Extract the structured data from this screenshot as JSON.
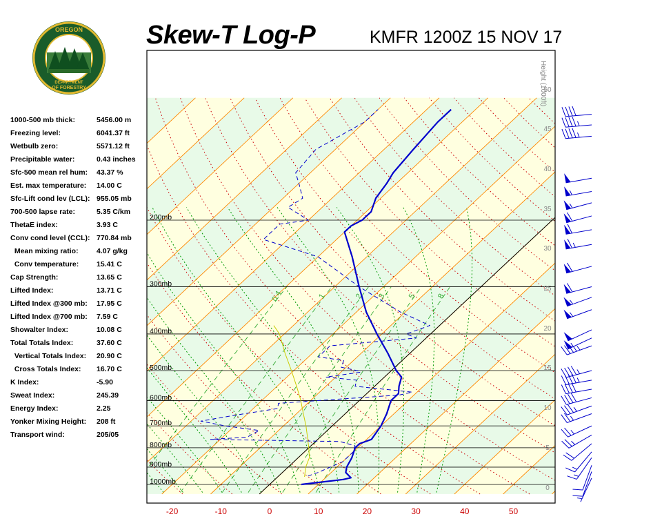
{
  "header": {
    "title": "Skew-T Log-P",
    "station": "KMFR 1200Z 15 NOV 17",
    "logo_text": "OREGON DEPARTMENT OF FORESTRY"
  },
  "stats": [
    {
      "label": "1000-500 mb thick:",
      "value": "5456.00 m"
    },
    {
      "label": "Freezing level:",
      "value": "6041.37 ft"
    },
    {
      "label": "Wetbulb zero:",
      "value": "5571.12 ft"
    },
    {
      "label": "Precipitable water:",
      "value": "0.43 inches"
    },
    {
      "label": "Sfc-500 mean rel hum:",
      "value": "43.37 %"
    },
    {
      "label": "Est. max temperature:",
      "value": "14.00 C"
    },
    {
      "label": "Sfc-Lift cond lev (LCL):",
      "value": "955.05 mb"
    },
    {
      "label": "700-500 lapse rate:",
      "value": "5.35 C/km"
    },
    {
      "label": "ThetaE index:",
      "value": "3.93 C"
    },
    {
      "label": "Conv cond level (CCL):",
      "value": "770.84 mb"
    },
    {
      "label": "  Mean mixing ratio:",
      "value": "4.07 g/kg"
    },
    {
      "label": "  Conv temperature:",
      "value": "15.41 C"
    },
    {
      "label": "Cap Strength:",
      "value": "13.65 C"
    },
    {
      "label": "Lifted Index:",
      "value": "13.71 C"
    },
    {
      "label": "Lifted Index @300 mb:",
      "value": "17.95 C"
    },
    {
      "label": "Lifted Index @700 mb:",
      "value": "7.59 C"
    },
    {
      "label": "Showalter Index:",
      "value": "10.08 C"
    },
    {
      "label": "Total Totals Index:",
      "value": "37.60 C"
    },
    {
      "label": "  Vertical Totals Index:",
      "value": "20.90 C"
    },
    {
      "label": "  Cross Totals Index:",
      "value": "16.70 C"
    },
    {
      "label": "K Index:",
      "value": "-5.90"
    },
    {
      "label": "Sweat Index:",
      "value": "245.39"
    },
    {
      "label": "Energy Index:",
      "value": "2.25"
    },
    {
      "label": "Yonker Mixing Height:",
      "value": "208 ft"
    },
    {
      "label": "Transport wind:",
      "value": "205/05"
    }
  ],
  "chart_data": {
    "type": "line",
    "title": "Skew-T Log-P",
    "x_axis": {
      "label": "",
      "unit": "C",
      "ticks": [
        -20,
        -10,
        0,
        10,
        20,
        30,
        40,
        50
      ],
      "range": [
        -27,
        58
      ]
    },
    "y_axis": {
      "label": "",
      "scale": "log-pressure",
      "unit": "mb",
      "range": [
        1050,
        100
      ],
      "ticks": [
        {
          "p": 1000,
          "label": "1000mb"
        },
        {
          "p": 900,
          "label": "900mb"
        },
        {
          "p": 800,
          "label": "800mb"
        },
        {
          "p": 700,
          "label": "700mb"
        },
        {
          "p": 600,
          "label": "600mb"
        },
        {
          "p": 500,
          "label": "500mb"
        },
        {
          "p": 400,
          "label": "400mb"
        },
        {
          "p": 300,
          "label": "300mb"
        },
        {
          "p": 200,
          "label": "200mb"
        }
      ]
    },
    "height_axis": {
      "label": "Height (1000ft)",
      "ticks": [
        0,
        5,
        10,
        15,
        20,
        25,
        30,
        35,
        40,
        45,
        50
      ]
    },
    "mixing_ratio_labels": [
      "0.4",
      "1",
      "2",
      "3",
      "5",
      "8"
    ],
    "series": [
      {
        "key": "temperature",
        "color": "#0000cc",
        "style": "solid",
        "points": [
          [
            1000,
            6.5
          ],
          [
            970,
            14
          ],
          [
            960,
            15.2
          ],
          [
            930,
            13
          ],
          [
            900,
            12
          ],
          [
            850,
            11
          ],
          [
            800,
            9.5
          ],
          [
            780,
            9.5
          ],
          [
            760,
            11
          ],
          [
            700,
            10
          ],
          [
            650,
            8.5
          ],
          [
            600,
            6.5
          ],
          [
            575,
            6.5
          ],
          [
            550,
            5
          ],
          [
            520,
            3.5
          ],
          [
            500,
            1
          ],
          [
            450,
            -4.5
          ],
          [
            400,
            -11
          ],
          [
            350,
            -18
          ],
          [
            300,
            -25
          ],
          [
            250,
            -33
          ],
          [
            215,
            -40
          ],
          [
            207,
            -40
          ],
          [
            200,
            -39
          ],
          [
            190,
            -39
          ],
          [
            175,
            -41
          ],
          [
            160,
            -42
          ],
          [
            150,
            -43
          ],
          [
            130,
            -44
          ],
          [
            110,
            -45
          ],
          [
            102,
            -45
          ]
        ]
      },
      {
        "key": "dewpoint",
        "color": "#0000cc",
        "style": "dashed",
        "points": [
          [
            950,
            6
          ],
          [
            930,
            7.3
          ],
          [
            870,
            10
          ],
          [
            820,
            10
          ],
          [
            790,
            9
          ],
          [
            770,
            5
          ],
          [
            760,
            -22
          ],
          [
            750,
            -15
          ],
          [
            720,
            -14
          ],
          [
            700,
            -22
          ],
          [
            680,
            -28
          ],
          [
            655,
            -22
          ],
          [
            630,
            -15
          ],
          [
            610,
            -16
          ],
          [
            580,
            7
          ],
          [
            570,
            9
          ],
          [
            550,
            -4
          ],
          [
            530,
            -5
          ],
          [
            520,
            -12
          ],
          [
            505,
            -6
          ],
          [
            500,
            -7
          ],
          [
            490,
            -11
          ],
          [
            470,
            -12
          ],
          [
            460,
            -18
          ],
          [
            430,
            -18
          ],
          [
            410,
            -2
          ],
          [
            400,
            -5
          ],
          [
            380,
            -2
          ],
          [
            350,
            -11
          ],
          [
            300,
            -25
          ],
          [
            250,
            -40
          ],
          [
            225,
            -55
          ],
          [
            205,
            -55
          ],
          [
            200,
            -50
          ],
          [
            185,
            -57
          ],
          [
            175,
            -56
          ],
          [
            160,
            -60
          ],
          [
            150,
            -63
          ],
          [
            130,
            -64
          ],
          [
            110,
            -60
          ],
          [
            102,
            -60
          ]
        ]
      },
      {
        "key": "parcel",
        "color": "#cccc00",
        "style": "solid",
        "points": [
          [
            955,
            5.5
          ],
          [
            900,
            3.6
          ],
          [
            850,
            2.3
          ],
          [
            800,
            0
          ],
          [
            750,
            -2.6
          ],
          [
            700,
            -5.4
          ],
          [
            650,
            -8.6
          ],
          [
            600,
            -12
          ],
          [
            550,
            -16
          ],
          [
            500,
            -20.5
          ],
          [
            450,
            -25.6
          ],
          [
            400,
            -31
          ],
          [
            380,
            -34
          ]
        ]
      }
    ],
    "wind_barbs": [
      {
        "p": 962,
        "dir": 205,
        "spd": 5
      },
      {
        "p": 925,
        "dir": 200,
        "spd": 10
      },
      {
        "p": 890,
        "dir": 200,
        "spd": 10
      },
      {
        "p": 850,
        "dir": 215,
        "spd": 15
      },
      {
        "p": 820,
        "dir": 220,
        "spd": 15
      },
      {
        "p": 780,
        "dir": 230,
        "spd": 20
      },
      {
        "p": 740,
        "dir": 240,
        "spd": 25
      },
      {
        "p": 700,
        "dir": 245,
        "spd": 25
      },
      {
        "p": 650,
        "dir": 250,
        "spd": 25
      },
      {
        "p": 620,
        "dir": 250,
        "spd": 35
      },
      {
        "p": 590,
        "dir": 255,
        "spd": 40
      },
      {
        "p": 560,
        "dir": 260,
        "spd": 40
      },
      {
        "p": 530,
        "dir": 260,
        "spd": 45
      },
      {
        "p": 500,
        "dir": 255,
        "spd": 45
      },
      {
        "p": 430,
        "dir": 250,
        "spd": 45
      },
      {
        "p": 410,
        "dir": 245,
        "spd": 50
      },
      {
        "p": 390,
        "dir": 245,
        "spd": 50
      },
      {
        "p": 345,
        "dir": 250,
        "spd": 55
      },
      {
        "p": 320,
        "dir": 250,
        "spd": 55
      },
      {
        "p": 300,
        "dir": 255,
        "spd": 60
      },
      {
        "p": 265,
        "dir": 255,
        "spd": 60
      },
      {
        "p": 232,
        "dir": 260,
        "spd": 65
      },
      {
        "p": 212,
        "dir": 260,
        "spd": 60
      },
      {
        "p": 195,
        "dir": 255,
        "spd": 60
      },
      {
        "p": 180,
        "dir": 255,
        "spd": 55
      },
      {
        "p": 168,
        "dir": 260,
        "spd": 55
      },
      {
        "p": 155,
        "dir": 260,
        "spd": 50
      },
      {
        "p": 120,
        "dir": 265,
        "spd": 45
      },
      {
        "p": 112,
        "dir": 265,
        "spd": 45
      },
      {
        "p": 105,
        "dir": 265,
        "spd": 40
      }
    ],
    "colors": {
      "temperature": "#0000cc",
      "dewpoint": "#0000cc",
      "parcel": "#cccc00",
      "isotherm": "#ff8800",
      "dry_adiabat": "#cc0000",
      "moist_adiabat": "#009900",
      "mixing_ratio": "#33aa33",
      "band_yellow": "#ffffe0",
      "band_green": "#e8fae8",
      "tick_label": "#cc0000",
      "isobar": "#000000"
    }
  }
}
